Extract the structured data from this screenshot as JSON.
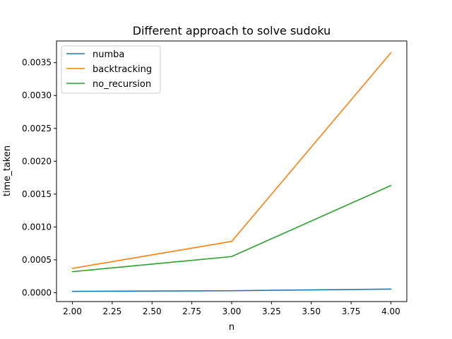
{
  "chart_data": {
    "type": "line",
    "title": "Different approach to solve sudoku",
    "xlabel": "n",
    "ylabel": "time_taken",
    "xlim": [
      1.9,
      4.1
    ],
    "ylim": [
      -0.000135,
      0.00383
    ],
    "x_ticks": [
      "2.00",
      "2.25",
      "2.50",
      "2.75",
      "3.00",
      "3.25",
      "3.50",
      "3.75",
      "4.00"
    ],
    "y_ticks": [
      "0.0000",
      "0.0005",
      "0.0010",
      "0.0015",
      "0.0020",
      "0.0025",
      "0.0030",
      "0.0035"
    ],
    "grid": false,
    "legend_position": "upper-left",
    "series": [
      {
        "name": "numba",
        "color": "#1f77b4",
        "x": [
          2,
          3,
          4
        ],
        "y": [
          2e-05,
          3e-05,
          5.5e-05
        ]
      },
      {
        "name": "backtracking",
        "color": "#ff7f0e",
        "x": [
          2,
          3,
          4
        ],
        "y": [
          0.00037,
          0.00078,
          0.00365
        ]
      },
      {
        "name": "no_recursion",
        "color": "#2ca02c",
        "x": [
          2,
          3,
          4
        ],
        "y": [
          0.00032,
          0.00055,
          0.00163
        ]
      }
    ]
  }
}
